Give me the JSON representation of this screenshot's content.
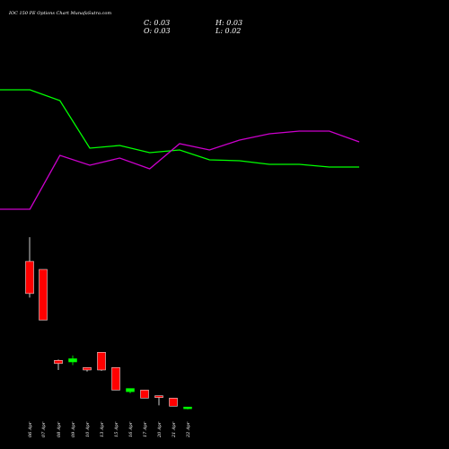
{
  "title": "IOC 150 PE Options Chart MunafaSutra.com",
  "ohlc": {
    "close": "C: 0.03",
    "high": "H: 0.03",
    "open": "O: 0.03",
    "low": "L: 0.02"
  },
  "chart_data": {
    "type": "candlestick",
    "title": "IOC 150 PE Options Chart MunafaSutra.com",
    "dates": [
      "06 Apr",
      "07 Apr",
      "08 Apr",
      "09 Apr",
      "10 Apr",
      "13 Apr",
      "15 Apr",
      "16 Apr",
      "17 Apr",
      "20 Apr",
      "21 Apr",
      "22 Apr"
    ],
    "candles": [
      {
        "open": 1.55,
        "high": 1.85,
        "low": 1.1,
        "close": 1.15,
        "color": "#ff0000"
      },
      {
        "open": 1.45,
        "high": 1.45,
        "low": 0.82,
        "close": 0.82,
        "color": "#ff0000"
      },
      {
        "open": 0.32,
        "high": 0.33,
        "low": 0.2,
        "close": 0.28,
        "color": "#ff0000"
      },
      {
        "open": 0.3,
        "high": 0.38,
        "low": 0.26,
        "close": 0.34,
        "color": "#00ff00"
      },
      {
        "open": 0.23,
        "high": 0.23,
        "low": 0.18,
        "close": 0.2,
        "color": "#ff0000"
      },
      {
        "open": 0.42,
        "high": 0.42,
        "low": 0.19,
        "close": 0.2,
        "color": "#ff0000"
      },
      {
        "open": 0.23,
        "high": 0.23,
        "low": -0.05,
        "close": -0.05,
        "color": "#ff0000"
      },
      {
        "open": -0.03,
        "high": -0.03,
        "low": -0.09,
        "close": -0.07,
        "color": "#00ff00"
      },
      {
        "open": -0.05,
        "high": -0.05,
        "low": -0.15,
        "close": -0.15,
        "color": "#ff0000"
      },
      {
        "open": -0.12,
        "high": -0.14,
        "low": -0.24,
        "close": -0.14,
        "color": "#ff0000"
      },
      {
        "open": -0.15,
        "high": -0.15,
        "low": -0.25,
        "close": -0.25,
        "color": "#ff0000"
      },
      {
        "open": -0.26,
        "high": -0.26,
        "low": -0.29,
        "close": -0.28,
        "color": "#00ff00"
      }
    ],
    "indicator_lines": [
      {
        "color": "#00ff00",
        "values": [
          100,
          100,
          112,
          165,
          162,
          170,
          167,
          178,
          179,
          183,
          183,
          186,
          186
        ]
      },
      {
        "color": "#cc00cc",
        "values": [
          233,
          233,
          173,
          184,
          176,
          188,
          160,
          167,
          156,
          149,
          146,
          146,
          158
        ]
      }
    ],
    "grid": false
  }
}
